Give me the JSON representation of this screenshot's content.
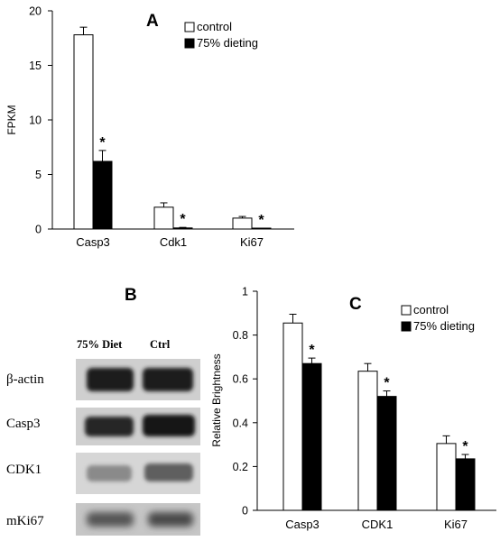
{
  "chart_data": [
    {
      "panel": "A",
      "type": "bar",
      "ylabel": "FPKM",
      "ylim": [
        0,
        20
      ],
      "yticks": [
        0,
        5,
        10,
        15,
        20
      ],
      "categories": [
        "Casp3",
        "Cdk1",
        "Ki67"
      ],
      "series": [
        {
          "name": "control",
          "color": "#ffffff",
          "values": [
            17.8,
            2.0,
            1.0
          ],
          "errors": [
            0.7,
            0.4,
            0.15
          ]
        },
        {
          "name": "75% dieting",
          "color": "#000000",
          "values": [
            6.2,
            0.1,
            0.05
          ],
          "errors": [
            1.0,
            0.05,
            0.03
          ]
        }
      ],
      "significance": [
        "*",
        "*",
        "*"
      ],
      "legend": "top-right"
    },
    {
      "panel": "C",
      "type": "bar",
      "ylabel": "Relative Brightness",
      "ylim": [
        0,
        1
      ],
      "yticks": [
        0,
        0.2,
        0.4,
        0.6,
        0.8,
        1
      ],
      "categories": [
        "Casp3",
        "CDK1",
        "Ki67"
      ],
      "series": [
        {
          "name": "control",
          "color": "#ffffff",
          "values": [
            0.855,
            0.635,
            0.305
          ],
          "errors": [
            0.04,
            0.035,
            0.035
          ]
        },
        {
          "name": "75% dieting",
          "color": "#000000",
          "values": [
            0.67,
            0.52,
            0.235
          ],
          "errors": [
            0.025,
            0.025,
            0.02
          ]
        }
      ],
      "significance": [
        "*",
        "*",
        "*"
      ],
      "legend": "top-right"
    }
  ],
  "blot": {
    "panel": "B",
    "columns": [
      "75% Diet",
      "Ctrl"
    ],
    "rows": [
      "β-actin",
      "Casp3",
      "CDK1",
      "mKi67"
    ]
  }
}
